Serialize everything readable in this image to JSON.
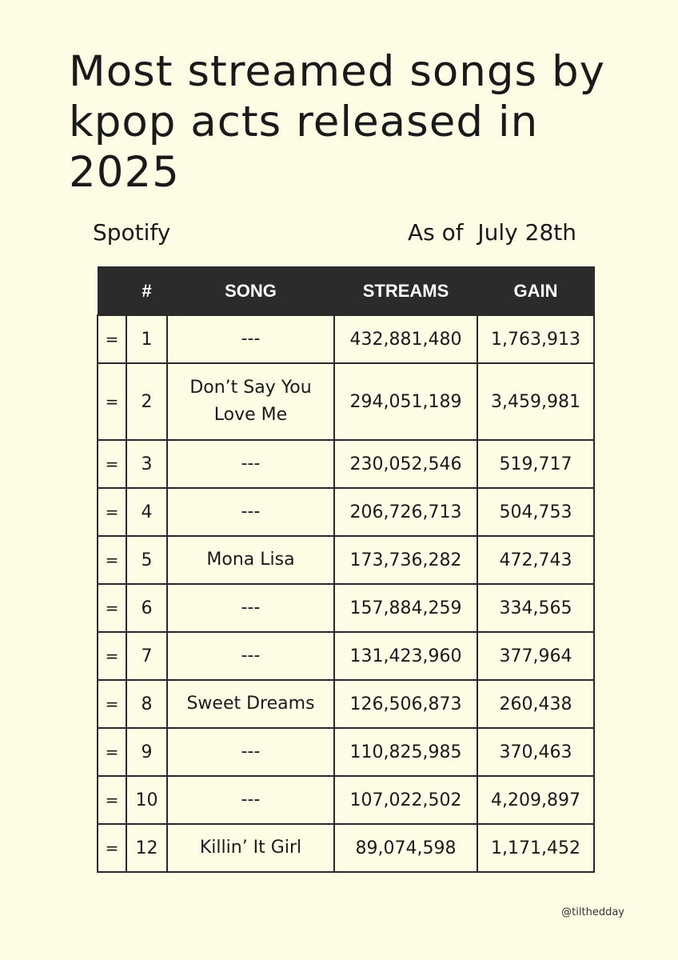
{
  "title": "Most streamed songs by kpop acts released in 2025",
  "source": "Spotify",
  "as_of": "As of  July 28th",
  "table": {
    "headers": {
      "change": "",
      "rank": "#",
      "song": "SONG",
      "streams": "STREAMS",
      "gain": "GAIN"
    },
    "rows": [
      {
        "change": "=",
        "rank": "1",
        "song": "---",
        "streams": "432,881,480",
        "gain": "1,763,913"
      },
      {
        "change": "=",
        "rank": "2",
        "song": "Don’t Say You Love Me",
        "streams": "294,051,189",
        "gain": "3,459,981"
      },
      {
        "change": "=",
        "rank": "3",
        "song": "---",
        "streams": "230,052,546",
        "gain": "519,717"
      },
      {
        "change": "=",
        "rank": "4",
        "song": "---",
        "streams": "206,726,713",
        "gain": "504,753"
      },
      {
        "change": "=",
        "rank": "5",
        "song": "Mona Lisa",
        "streams": "173,736,282",
        "gain": "472,743"
      },
      {
        "change": "=",
        "rank": "6",
        "song": "---",
        "streams": "157,884,259",
        "gain": "334,565"
      },
      {
        "change": "=",
        "rank": "7",
        "song": "---",
        "streams": "131,423,960",
        "gain": "377,964"
      },
      {
        "change": "=",
        "rank": "8",
        "song": "Sweet Dreams",
        "streams": "126,506,873",
        "gain": "260,438"
      },
      {
        "change": "=",
        "rank": "9",
        "song": "---",
        "streams": "110,825,985",
        "gain": "370,463"
      },
      {
        "change": "=",
        "rank": "10",
        "song": "---",
        "streams": "107,022,502",
        "gain": "4,209,897"
      },
      {
        "change": "=",
        "rank": "12",
        "song": "Killin’ It Girl",
        "streams": "89,074,598",
        "gain": "1,171,452"
      }
    ]
  },
  "credit": "@tilthedday",
  "colors": {
    "background": "#fdfde6",
    "header_background": "#2b2b2b",
    "header_text": "#ffffff",
    "text": "#1a1a1a"
  }
}
